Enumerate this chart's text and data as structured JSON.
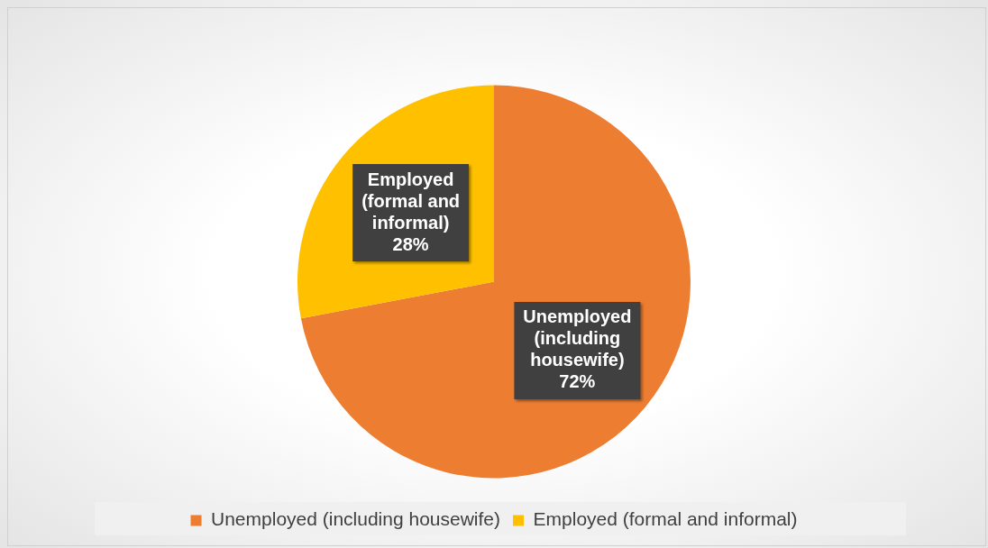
{
  "chart_data": {
    "type": "pie",
    "categories": [
      "Unemployed (including housewife)",
      "Employed (formal and informal)"
    ],
    "values": [
      72,
      28
    ],
    "colors": [
      "#ed7d31",
      "#ffc000"
    ],
    "value_labels": [
      "72%",
      "28%"
    ],
    "legend": "bottom"
  }
}
